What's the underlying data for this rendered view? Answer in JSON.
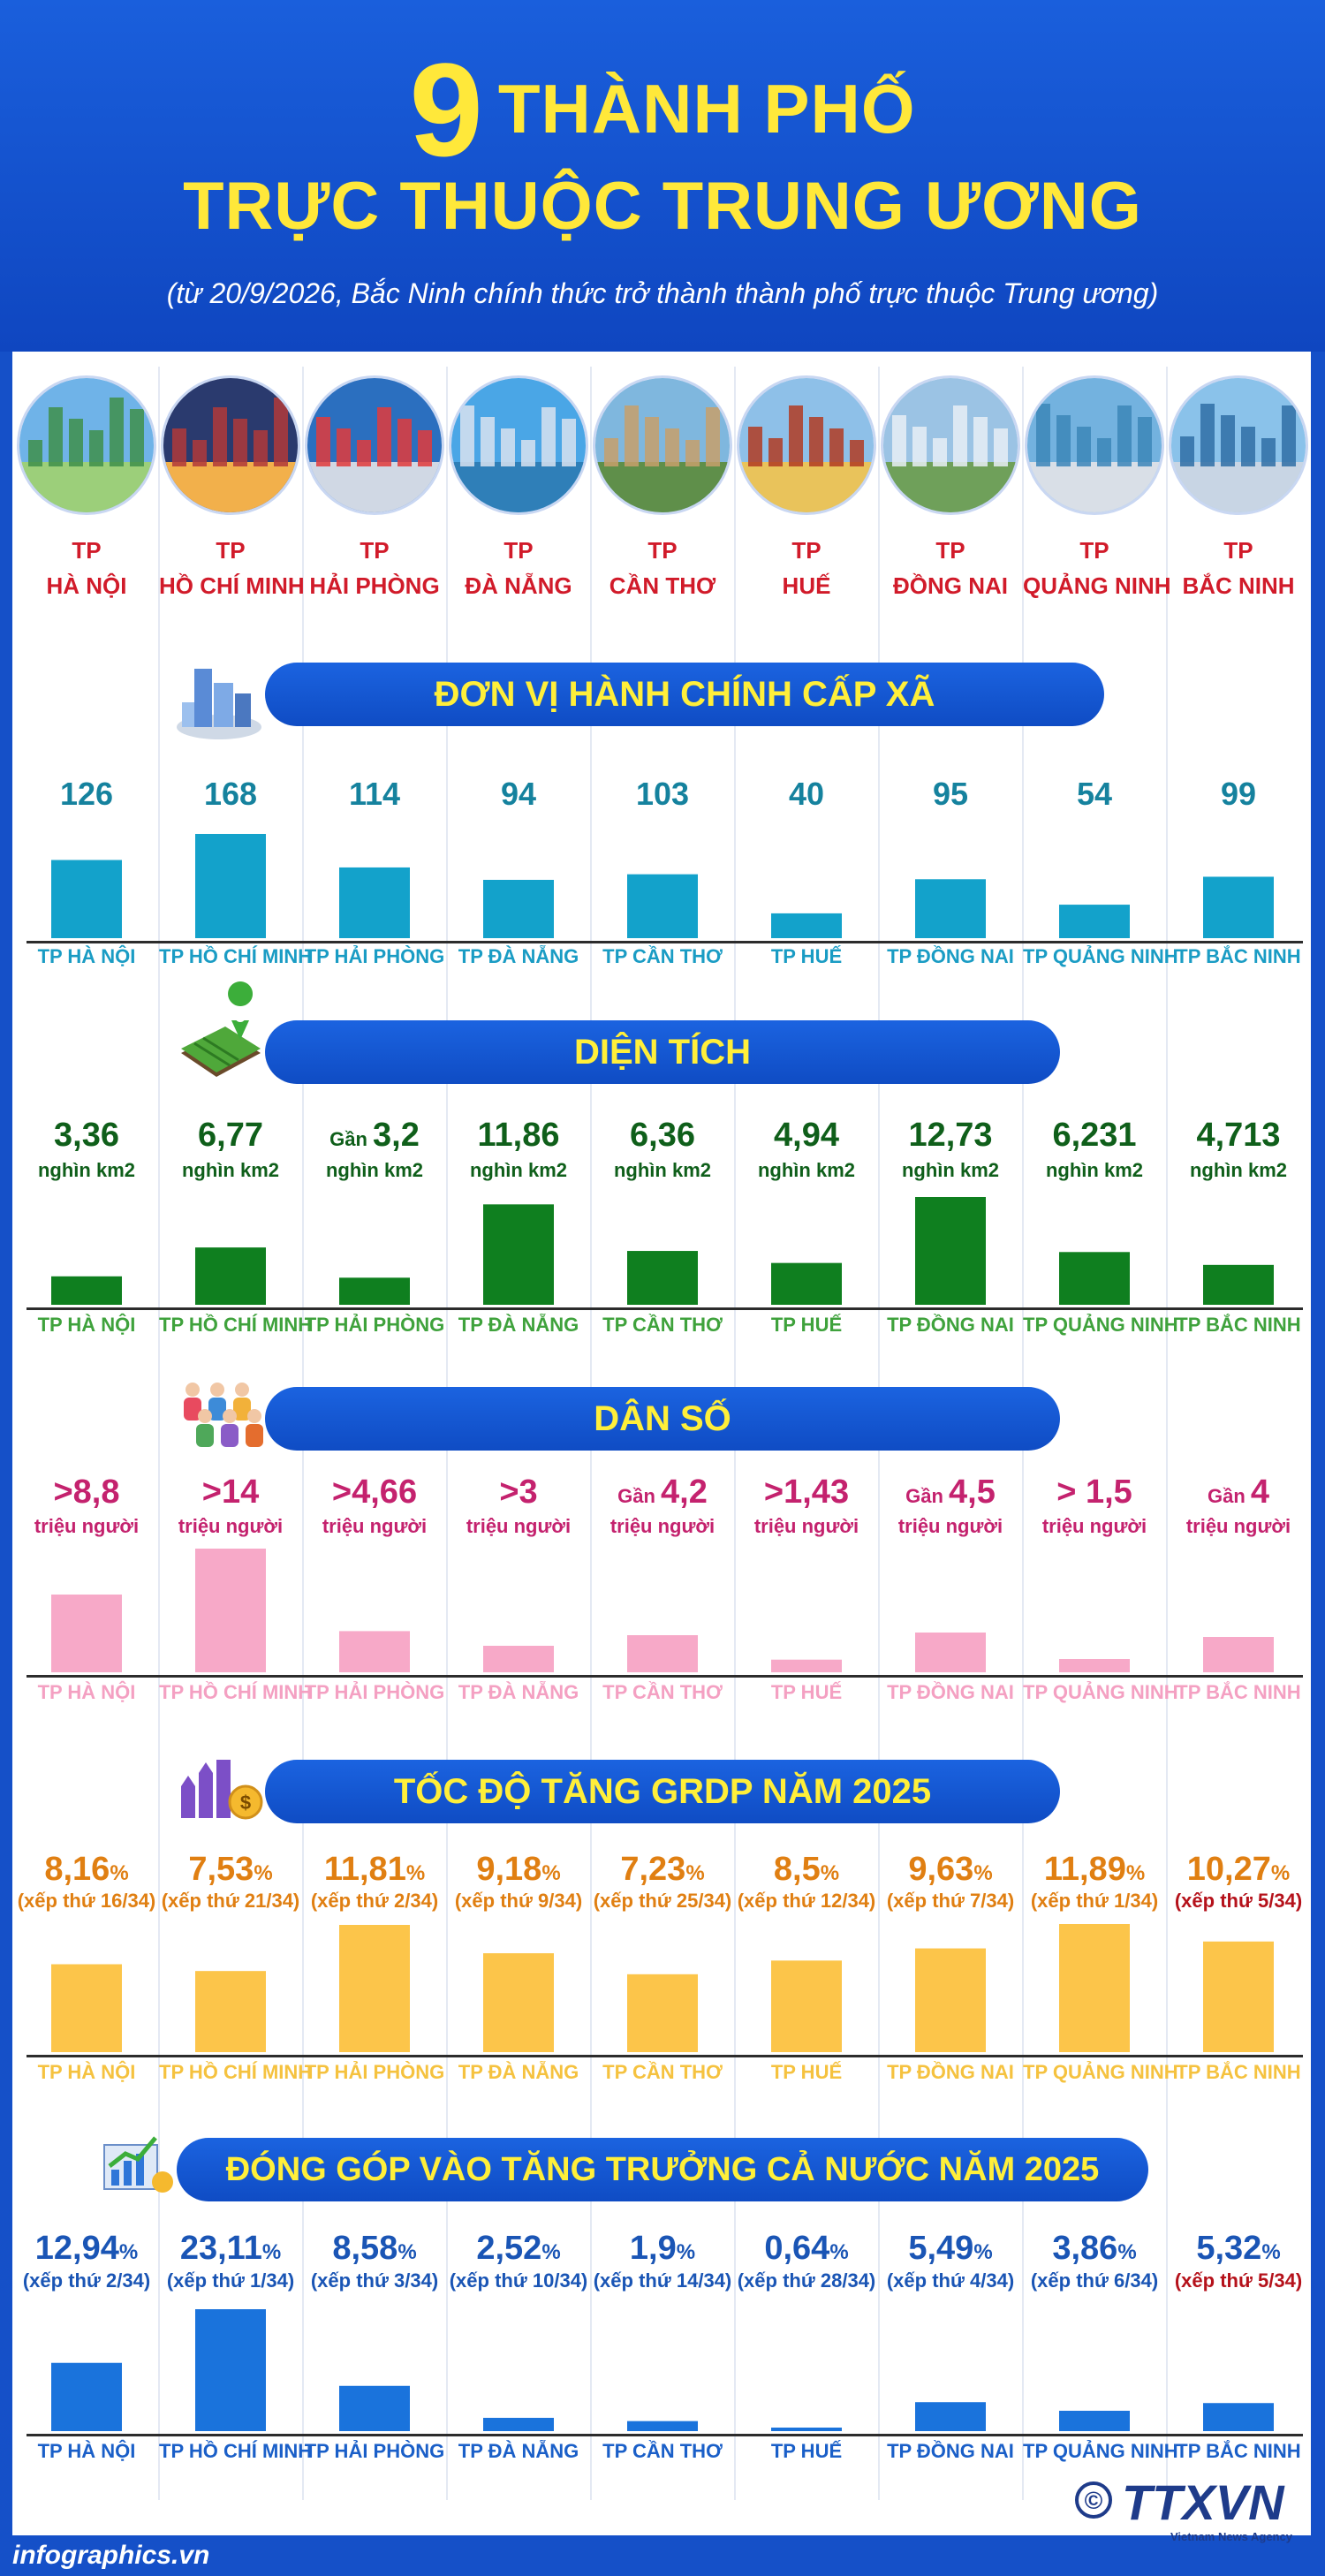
{
  "header": {
    "number": "9",
    "line1": "THÀNH PHỐ",
    "line2": "TRỰC THUỘC TRUNG ƯƠNG",
    "subtitle": "(từ 20/9/2026, Bắc Ninh chính thức trở thành thành phố trực thuộc Trung ương)"
  },
  "cities": [
    {
      "prefix": "TP",
      "name": "HÀ NỘI",
      "label": "TP HÀ NỘI"
    },
    {
      "prefix": "TP",
      "name": "HỒ CHÍ MINH",
      "label": "TP HỒ CHÍ MINH"
    },
    {
      "prefix": "TP",
      "name": "HẢI PHÒNG",
      "label": "TP HẢI PHÒNG"
    },
    {
      "prefix": "TP",
      "name": "ĐÀ NẴNG",
      "label": "TP ĐÀ NẴNG"
    },
    {
      "prefix": "TP",
      "name": "CẦN THƠ",
      "label": "TP CẦN THƠ"
    },
    {
      "prefix": "TP",
      "name": "HUẾ",
      "label": "TP HUẾ"
    },
    {
      "prefix": "TP",
      "name": "ĐỒNG NAI",
      "label": "TP ĐỒNG NAI"
    },
    {
      "prefix": "TP",
      "name": "QUẢNG NINH",
      "label": "TP QUẢNG NINH"
    },
    {
      "prefix": "TP",
      "name": "BẮC NINH",
      "label": "TP BẮC NINH"
    }
  ],
  "chart_data": [
    {
      "type": "bar",
      "title": "ĐƠN VỊ HÀNH CHÍNH CẤP XÃ",
      "categories": [
        "TP HÀ NỘI",
        "TP HỒ CHÍ MINH",
        "TP HẢI PHÒNG",
        "TP ĐÀ NẴNG",
        "TP CẦN THƠ",
        "TP HUẾ",
        "TP ĐỒNG NAI",
        "TP QUẢNG NINH",
        "TP BẮC NINH"
      ],
      "values": [
        126,
        168,
        114,
        94,
        103,
        40,
        95,
        54,
        99
      ],
      "labels": [
        {
          "prefix": "",
          "value": "126",
          "suffix": ""
        },
        {
          "prefix": "",
          "value": "168",
          "suffix": ""
        },
        {
          "prefix": "",
          "value": "114",
          "suffix": ""
        },
        {
          "prefix": "",
          "value": "94",
          "suffix": ""
        },
        {
          "prefix": "",
          "value": "103",
          "suffix": ""
        },
        {
          "prefix": "",
          "value": "40",
          "suffix": ""
        },
        {
          "prefix": "",
          "value": "95",
          "suffix": ""
        },
        {
          "prefix": "",
          "value": "54",
          "suffix": ""
        },
        {
          "prefix": "",
          "value": "99",
          "suffix": ""
        }
      ],
      "sublabels": [
        "",
        "",
        "",
        "",
        "",
        "",
        "",
        "",
        ""
      ],
      "colors": {
        "bar": "#13a2cb",
        "value": "#15829e",
        "category": "#1a9cc4",
        "sublabel": "#15829e"
      }
    },
    {
      "type": "bar",
      "title": "DIỆN TÍCH",
      "unit": "nghìn km2",
      "categories": [
        "TP HÀ NỘI",
        "TP HỒ CHÍ MINH",
        "TP HẢI PHÒNG",
        "TP ĐÀ NẴNG",
        "TP CẦN THƠ",
        "TP HUẾ",
        "TP ĐỒNG NAI",
        "TP QUẢNG NINH",
        "TP BẮC NINH"
      ],
      "values": [
        3.36,
        6.77,
        3.2,
        11.86,
        6.36,
        4.94,
        12.73,
        6.231,
        4.713
      ],
      "labels": [
        {
          "prefix": "",
          "value": "3,36",
          "suffix": ""
        },
        {
          "prefix": "",
          "value": "6,77",
          "suffix": ""
        },
        {
          "prefix": "Gần",
          "value": "3,2",
          "suffix": ""
        },
        {
          "prefix": "",
          "value": "11,86",
          "suffix": ""
        },
        {
          "prefix": "",
          "value": "6,36",
          "suffix": ""
        },
        {
          "prefix": "",
          "value": "4,94",
          "suffix": ""
        },
        {
          "prefix": "",
          "value": "12,73",
          "suffix": ""
        },
        {
          "prefix": "",
          "value": "6,231",
          "suffix": ""
        },
        {
          "prefix": "",
          "value": "4,713",
          "suffix": ""
        }
      ],
      "sublabels": [
        "nghìn km2",
        "nghìn km2",
        "nghìn km2",
        "nghìn km2",
        "nghìn km2",
        "nghìn km2",
        "nghìn km2",
        "nghìn km2",
        "nghìn km2"
      ],
      "colors": {
        "bar": "#0f7f1f",
        "value": "#0f5f1a",
        "category": "#3fa23c",
        "sublabel": "#0f5f1a"
      }
    },
    {
      "type": "bar",
      "title": "DÂN SỐ",
      "unit": "triệu người",
      "categories": [
        "TP HÀ NỘI",
        "TP HỒ CHÍ MINH",
        "TP HẢI PHÒNG",
        "TP ĐÀ NẴNG",
        "TP CẦN THƠ",
        "TP HUẾ",
        "TP ĐỒNG NAI",
        "TP QUẢNG NINH",
        "TP BẮC NINH"
      ],
      "values": [
        8.8,
        14,
        4.66,
        3,
        4.2,
        1.43,
        4.5,
        1.5,
        4
      ],
      "labels": [
        {
          "prefix": "",
          "value": ">8,8",
          "suffix": ""
        },
        {
          "prefix": "",
          "value": ">14",
          "suffix": ""
        },
        {
          "prefix": "",
          "value": ">4,66",
          "suffix": ""
        },
        {
          "prefix": "",
          "value": ">3",
          "suffix": ""
        },
        {
          "prefix": "Gần",
          "value": "4,2",
          "suffix": ""
        },
        {
          "prefix": "",
          "value": ">1,43",
          "suffix": ""
        },
        {
          "prefix": "Gần",
          "value": "4,5",
          "suffix": ""
        },
        {
          "prefix": "",
          "value": "> 1,5",
          "suffix": ""
        },
        {
          "prefix": "Gần",
          "value": "4",
          "suffix": ""
        }
      ],
      "sublabels": [
        "triệu người",
        "triệu người",
        "triệu người",
        "triệu người",
        "triệu người",
        "triệu người",
        "triệu người",
        "triệu người",
        "triệu người"
      ],
      "colors": {
        "bar": "#f7a9c8",
        "value": "#c4226e",
        "category": "#f4a0c2",
        "sublabel": "#c4226e"
      }
    },
    {
      "type": "bar",
      "title": "TỐC ĐỘ TĂNG GRDP NĂM 2025",
      "unit": "%",
      "categories": [
        "TP HÀ NỘI",
        "TP HỒ CHÍ MINH",
        "TP HẢI PHÒNG",
        "TP ĐÀ NẴNG",
        "TP CẦN THƠ",
        "TP HUẾ",
        "TP ĐỒNG NAI",
        "TP QUẢNG NINH",
        "TP BẮC NINH"
      ],
      "values": [
        8.16,
        7.53,
        11.81,
        9.18,
        7.23,
        8.5,
        9.63,
        11.89,
        10.27
      ],
      "labels": [
        {
          "prefix": "",
          "value": "8,16",
          "suffix": "%"
        },
        {
          "prefix": "",
          "value": "7,53",
          "suffix": "%"
        },
        {
          "prefix": "",
          "value": "11,81",
          "suffix": "%"
        },
        {
          "prefix": "",
          "value": "9,18",
          "suffix": "%"
        },
        {
          "prefix": "",
          "value": "7,23",
          "suffix": "%"
        },
        {
          "prefix": "",
          "value": "8,5",
          "suffix": "%"
        },
        {
          "prefix": "",
          "value": "9,63",
          "suffix": "%"
        },
        {
          "prefix": "",
          "value": "11,89",
          "suffix": "%"
        },
        {
          "prefix": "",
          "value": "10,27",
          "suffix": "%"
        }
      ],
      "sublabels": [
        "(xếp thứ 16/34)",
        "(xếp thứ 21/34)",
        "(xếp thứ 2/34)",
        "(xếp thứ 9/34)",
        "(xếp thứ 25/34)",
        "(xếp thứ 12/34)",
        "(xếp thứ 7/34)",
        "(xếp thứ 1/34)",
        "(xếp thứ 5/34)"
      ],
      "colors": {
        "bar": "#fcc54a",
        "value": "#e07f12",
        "category": "#f5c23f",
        "sublabel": "#e07f12",
        "sublabel_last": "#b5121b"
      }
    },
    {
      "type": "bar",
      "title": "ĐÓNG GÓP VÀO TĂNG TRƯỞNG CẢ NƯỚC NĂM 2025",
      "unit": "%",
      "categories": [
        "TP HÀ NỘI",
        "TP HỒ CHÍ MINH",
        "TP HẢI PHÒNG",
        "TP ĐÀ NẴNG",
        "TP CẦN THƠ",
        "TP HUẾ",
        "TP ĐỒNG NAI",
        "TP QUẢNG NINH",
        "TP BẮC NINH"
      ],
      "values": [
        12.94,
        23.11,
        8.58,
        2.52,
        1.9,
        0.64,
        5.49,
        3.86,
        5.32
      ],
      "labels": [
        {
          "prefix": "",
          "value": "12,94",
          "suffix": "%"
        },
        {
          "prefix": "",
          "value": "23,11",
          "suffix": "%"
        },
        {
          "prefix": "",
          "value": "8,58",
          "suffix": "%"
        },
        {
          "prefix": "",
          "value": "2,52",
          "suffix": "%"
        },
        {
          "prefix": "",
          "value": "1,9",
          "suffix": "%"
        },
        {
          "prefix": "",
          "value": "0,64",
          "suffix": "%"
        },
        {
          "prefix": "",
          "value": "5,49",
          "suffix": "%"
        },
        {
          "prefix": "",
          "value": "3,86",
          "suffix": "%"
        },
        {
          "prefix": "",
          "value": "5,32",
          "suffix": "%"
        }
      ],
      "sublabels": [
        "(xếp thứ 2/34)",
        "(xếp thứ 1/34)",
        "(xếp thứ 3/34)",
        "(xếp thứ 10/34)",
        "(xếp thứ 14/34)",
        "(xếp thứ 28/34)",
        "(xếp thứ 4/34)",
        "(xếp thứ 6/34)",
        "(xếp thứ 5/34)"
      ],
      "colors": {
        "bar": "#1a73dc",
        "value": "#1a55b5",
        "category": "#1a5fc8",
        "sublabel": "#1a55b5",
        "sublabel_last": "#b5121b"
      }
    }
  ],
  "footer": {
    "site": "infographics.vn",
    "copyright": "©",
    "agency": "TTXVN",
    "agency_en": "Vietnam News Agency"
  }
}
